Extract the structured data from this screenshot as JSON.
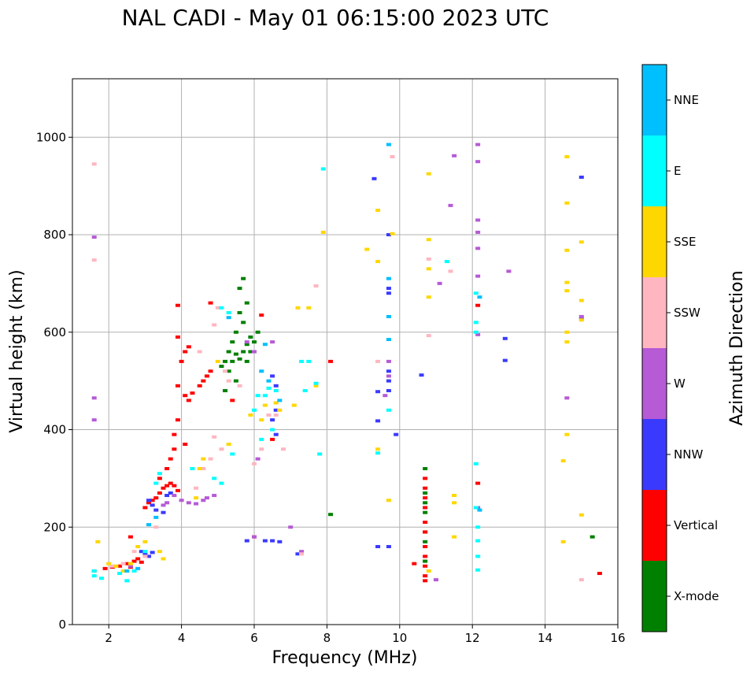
{
  "chart_data": {
    "type": "scatter",
    "title": "NAL CADI - May 01 06:15:00 2023 UTC",
    "xlabel": "Frequency (MHz)",
    "ylabel": "Virtual height (km)",
    "xlim": [
      1,
      16
    ],
    "ylim": [
      0,
      1120
    ],
    "x_ticks": [
      2,
      4,
      6,
      8,
      10,
      12,
      14,
      16
    ],
    "y_ticks": [
      0,
      200,
      400,
      600,
      800,
      1000
    ],
    "grid": true,
    "colorbar": {
      "label": "Azimuth Direction",
      "categories": [
        {
          "name": "X-mode",
          "color": "#008000"
        },
        {
          "name": "Vertical",
          "color": "#ff0000"
        },
        {
          "name": "NNW",
          "color": "#3a3aff"
        },
        {
          "name": "W",
          "color": "#b65ad6"
        },
        {
          "name": "SSW",
          "color": "#ffb6c1"
        },
        {
          "name": "SSE",
          "color": "#ffd700"
        },
        {
          "name": "E",
          "color": "#00ffff"
        },
        {
          "name": "NNE",
          "color": "#00bfff"
        }
      ]
    },
    "series": [
      {
        "name": "X-mode",
        "points": [
          [
            5.2,
            480
          ],
          [
            5.3,
            520
          ],
          [
            5.4,
            540
          ],
          [
            5.5,
            555
          ],
          [
            5.6,
            545
          ],
          [
            5.7,
            560
          ],
          [
            5.8,
            575
          ],
          [
            5.9,
            590
          ],
          [
            6.0,
            580
          ],
          [
            5.5,
            600
          ],
          [
            5.7,
            620
          ],
          [
            5.6,
            640
          ],
          [
            5.8,
            660
          ],
          [
            5.6,
            690
          ],
          [
            5.7,
            710
          ],
          [
            5.4,
            580
          ],
          [
            5.3,
            560
          ],
          [
            5.9,
            560
          ],
          [
            6.1,
            600
          ],
          [
            5.2,
            540
          ],
          [
            5.1,
            530
          ],
          [
            5.8,
            540
          ],
          [
            5.5,
            500
          ],
          [
            8.1,
            226
          ],
          [
            10.7,
            320
          ],
          [
            10.7,
            270
          ],
          [
            10.7,
            250
          ],
          [
            10.7,
            230
          ],
          [
            10.7,
            190
          ],
          [
            10.7,
            170
          ],
          [
            10.7,
            130
          ],
          [
            15.3,
            180
          ]
        ]
      },
      {
        "name": "Vertical",
        "points": [
          [
            1.6,
            110
          ],
          [
            1.9,
            115
          ],
          [
            2.1,
            118
          ],
          [
            2.3,
            120
          ],
          [
            2.5,
            125
          ],
          [
            2.6,
            118
          ],
          [
            2.7,
            130
          ],
          [
            2.8,
            135
          ],
          [
            2.9,
            128
          ],
          [
            3.0,
            240
          ],
          [
            3.1,
            250
          ],
          [
            3.2,
            255
          ],
          [
            3.3,
            260
          ],
          [
            3.4,
            270
          ],
          [
            3.5,
            280
          ],
          [
            3.6,
            285
          ],
          [
            3.7,
            290
          ],
          [
            3.8,
            285
          ],
          [
            3.9,
            275
          ],
          [
            3.4,
            300
          ],
          [
            3.6,
            320
          ],
          [
            3.7,
            340
          ],
          [
            3.8,
            360
          ],
          [
            3.8,
            390
          ],
          [
            3.9,
            420
          ],
          [
            4.1,
            470
          ],
          [
            4.3,
            475
          ],
          [
            4.5,
            490
          ],
          [
            4.6,
            500
          ],
          [
            4.7,
            510
          ],
          [
            4.8,
            520
          ],
          [
            4.2,
            460
          ],
          [
            3.9,
            490
          ],
          [
            4.0,
            540
          ],
          [
            4.1,
            560
          ],
          [
            4.2,
            570
          ],
          [
            3.9,
            590
          ],
          [
            3.9,
            655
          ],
          [
            4.8,
            660
          ],
          [
            6.2,
            635
          ],
          [
            5.4,
            460
          ],
          [
            6.5,
            380
          ],
          [
            6.0,
            180
          ],
          [
            8.1,
            540
          ],
          [
            10.4,
            125
          ],
          [
            10.7,
            300
          ],
          [
            10.7,
            280
          ],
          [
            10.7,
            260
          ],
          [
            10.7,
            240
          ],
          [
            10.7,
            210
          ],
          [
            10.7,
            190
          ],
          [
            10.7,
            160
          ],
          [
            10.7,
            140
          ],
          [
            10.7,
            120
          ],
          [
            10.7,
            100
          ],
          [
            10.7,
            90
          ],
          [
            12.15,
            290
          ],
          [
            12.15,
            655
          ],
          [
            15.5,
            105
          ],
          [
            4.1,
            370
          ],
          [
            2.6,
            180
          ]
        ]
      },
      {
        "name": "NNW",
        "points": [
          [
            3.1,
            255
          ],
          [
            3.2,
            245
          ],
          [
            3.3,
            235
          ],
          [
            3.5,
            230
          ],
          [
            3.6,
            265
          ],
          [
            3.7,
            270
          ],
          [
            2.9,
            150
          ],
          [
            3.0,
            145
          ],
          [
            3.1,
            140
          ],
          [
            3.2,
            148
          ],
          [
            6.3,
            172
          ],
          [
            6.5,
            172
          ],
          [
            6.7,
            170
          ],
          [
            5.8,
            172
          ],
          [
            7.2,
            145
          ],
          [
            9.4,
            160
          ],
          [
            9.7,
            160
          ],
          [
            9.7,
            480
          ],
          [
            9.7,
            500
          ],
          [
            9.7,
            520
          ],
          [
            9.7,
            680
          ],
          [
            9.7,
            690
          ],
          [
            10.6,
            512
          ],
          [
            9.4,
            478
          ],
          [
            9.4,
            418
          ],
          [
            9.3,
            915
          ],
          [
            9.7,
            800
          ],
          [
            12.9,
            542
          ],
          [
            12.9,
            587
          ],
          [
            6.6,
            390
          ],
          [
            6.5,
            420
          ],
          [
            6.6,
            440
          ],
          [
            9.9,
            390
          ],
          [
            15.0,
            918
          ],
          [
            15.0,
            628
          ],
          [
            6.6,
            490
          ],
          [
            6.5,
            510
          ]
        ]
      },
      {
        "name": "W",
        "points": [
          [
            3.8,
            265
          ],
          [
            4.0,
            255
          ],
          [
            4.2,
            250
          ],
          [
            4.4,
            248
          ],
          [
            4.6,
            255
          ],
          [
            4.7,
            260
          ],
          [
            4.9,
            265
          ],
          [
            3.5,
            245
          ],
          [
            3.6,
            250
          ],
          [
            6.1,
            340
          ],
          [
            6.0,
            560
          ],
          [
            5.8,
            580
          ],
          [
            6.0,
            180
          ],
          [
            7.0,
            200
          ],
          [
            7.3,
            150
          ],
          [
            9.7,
            510
          ],
          [
            9.7,
            540
          ],
          [
            9.6,
            470
          ],
          [
            11.1,
            700
          ],
          [
            11.4,
            860
          ],
          [
            11.5,
            962
          ],
          [
            12.15,
            985
          ],
          [
            12.15,
            950
          ],
          [
            12.15,
            830
          ],
          [
            12.15,
            805
          ],
          [
            12.15,
            772
          ],
          [
            12.15,
            715
          ],
          [
            12.15,
            595
          ],
          [
            12.15,
            240
          ],
          [
            13.0,
            725
          ],
          [
            14.6,
            465
          ],
          [
            15.0,
            632
          ],
          [
            6.5,
            580
          ],
          [
            1.6,
            420
          ],
          [
            1.6,
            465
          ],
          [
            1.6,
            795
          ],
          [
            11.0,
            92
          ],
          [
            2.6,
            120
          ]
        ]
      },
      {
        "name": "SSW",
        "points": [
          [
            2.1,
            120
          ],
          [
            2.4,
            125
          ],
          [
            2.7,
            150
          ],
          [
            3.0,
            140
          ],
          [
            3.3,
            200
          ],
          [
            4.4,
            280
          ],
          [
            4.6,
            320
          ],
          [
            4.8,
            340
          ],
          [
            4.9,
            385
          ],
          [
            5.1,
            360
          ],
          [
            5.2,
            520
          ],
          [
            5.3,
            500
          ],
          [
            5.6,
            490
          ],
          [
            6.0,
            330
          ],
          [
            6.2,
            360
          ],
          [
            6.4,
            430
          ],
          [
            6.6,
            430
          ],
          [
            6.8,
            360
          ],
          [
            7.3,
            145
          ],
          [
            7.7,
            695
          ],
          [
            9.4,
            540
          ],
          [
            9.8,
            960
          ],
          [
            10.8,
            593
          ],
          [
            10.8,
            750
          ],
          [
            11.4,
            725
          ],
          [
            15.0,
            92
          ],
          [
            1.6,
            945
          ],
          [
            1.6,
            748
          ],
          [
            4.5,
            560
          ],
          [
            4.9,
            615
          ],
          [
            5.0,
            650
          ]
        ]
      },
      {
        "name": "SSE",
        "points": [
          [
            1.7,
            170
          ],
          [
            2.0,
            125
          ],
          [
            2.2,
            120
          ],
          [
            2.4,
            110
          ],
          [
            2.6,
            125
          ],
          [
            2.8,
            160
          ],
          [
            3.0,
            170
          ],
          [
            3.4,
            150
          ],
          [
            3.5,
            135
          ],
          [
            4.4,
            260
          ],
          [
            4.5,
            320
          ],
          [
            4.6,
            340
          ],
          [
            5.3,
            370
          ],
          [
            5.9,
            430
          ],
          [
            6.2,
            420
          ],
          [
            6.3,
            450
          ],
          [
            6.6,
            455
          ],
          [
            6.7,
            440
          ],
          [
            7.2,
            650
          ],
          [
            7.5,
            650
          ],
          [
            7.7,
            490
          ],
          [
            7.9,
            805
          ],
          [
            9.4,
            360
          ],
          [
            9.4,
            850
          ],
          [
            9.1,
            770
          ],
          [
            9.4,
            745
          ],
          [
            9.7,
            255
          ],
          [
            9.8,
            802
          ],
          [
            10.8,
            925
          ],
          [
            10.8,
            790
          ],
          [
            10.8,
            730
          ],
          [
            10.8,
            672
          ],
          [
            10.8,
            110
          ],
          [
            11.5,
            265
          ],
          [
            11.5,
            250
          ],
          [
            11.5,
            180
          ],
          [
            14.5,
            336
          ],
          [
            14.5,
            170
          ],
          [
            14.6,
            390
          ],
          [
            14.6,
            580
          ],
          [
            14.6,
            600
          ],
          [
            14.6,
            685
          ],
          [
            14.6,
            702
          ],
          [
            14.6,
            768
          ],
          [
            14.6,
            865
          ],
          [
            14.6,
            960
          ],
          [
            15.0,
            225
          ],
          [
            15.0,
            785
          ],
          [
            15.0,
            665
          ],
          [
            15.0,
            625
          ],
          [
            7.1,
            450
          ],
          [
            5.0,
            540
          ]
        ]
      },
      {
        "name": "E",
        "points": [
          [
            1.6,
            110
          ],
          [
            1.6,
            100
          ],
          [
            1.8,
            95
          ],
          [
            2.3,
            105
          ],
          [
            2.5,
            90
          ],
          [
            2.7,
            110
          ],
          [
            3.0,
            150
          ],
          [
            3.3,
            290
          ],
          [
            3.4,
            310
          ],
          [
            4.3,
            320
          ],
          [
            4.9,
            300
          ],
          [
            5.1,
            290
          ],
          [
            5.4,
            350
          ],
          [
            6.1,
            470
          ],
          [
            6.3,
            470
          ],
          [
            6.4,
            485
          ],
          [
            6.0,
            440
          ],
          [
            6.6,
            480
          ],
          [
            6.5,
            400
          ],
          [
            6.2,
            380
          ],
          [
            7.3,
            540
          ],
          [
            7.5,
            540
          ],
          [
            7.7,
            495
          ],
          [
            7.4,
            480
          ],
          [
            7.9,
            935
          ],
          [
            7.8,
            350
          ],
          [
            9.4,
            352
          ],
          [
            9.7,
            440
          ],
          [
            11.3,
            745
          ],
          [
            12.1,
            620
          ],
          [
            12.1,
            680
          ],
          [
            12.1,
            600
          ],
          [
            12.1,
            330
          ],
          [
            12.1,
            240
          ],
          [
            12.15,
            200
          ],
          [
            12.15,
            172
          ],
          [
            12.15,
            140
          ],
          [
            12.15,
            112
          ],
          [
            5.1,
            650
          ],
          [
            5.3,
            640
          ]
        ]
      },
      {
        "name": "NNE",
        "points": [
          [
            2.5,
            110
          ],
          [
            2.8,
            115
          ],
          [
            3.1,
            205
          ],
          [
            3.3,
            220
          ],
          [
            5.3,
            630
          ],
          [
            6.2,
            520
          ],
          [
            6.4,
            500
          ],
          [
            6.3,
            575
          ],
          [
            6.7,
            460
          ],
          [
            9.7,
            710
          ],
          [
            9.7,
            585
          ],
          [
            9.7,
            985
          ],
          [
            9.7,
            632
          ],
          [
            12.2,
            672
          ],
          [
            12.2,
            235
          ]
        ]
      }
    ]
  }
}
